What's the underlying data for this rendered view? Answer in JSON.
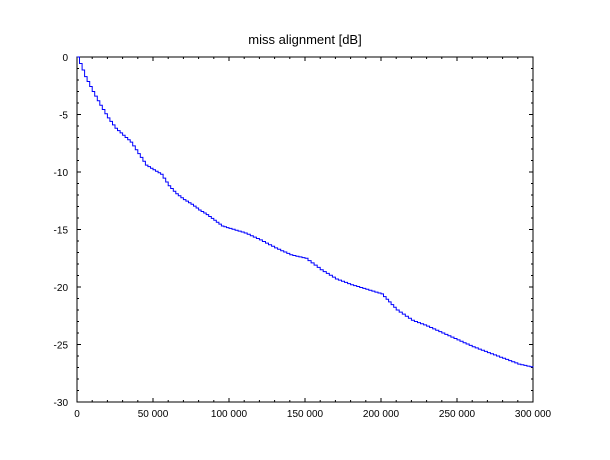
{
  "chart_data": {
    "type": "line",
    "title": "miss alignment [dB]",
    "xlabel": "",
    "ylabel": "",
    "xlim": [
      0,
      300000
    ],
    "ylim": [
      -30,
      0
    ],
    "x_ticks": [
      0,
      50000,
      100000,
      150000,
      200000,
      250000,
      300000
    ],
    "x_tick_labels": [
      "0",
      "50 000",
      "100 000",
      "150 000",
      "200 000",
      "250 000",
      "300 000"
    ],
    "y_ticks": [
      0,
      -5,
      -10,
      -15,
      -20,
      -25,
      -30
    ],
    "y_tick_labels": [
      "0",
      "-5",
      "-10",
      "-15",
      "-20",
      "-25",
      "-30"
    ],
    "grid": false,
    "line_color": "#0000ff",
    "series": [
      {
        "x": [
          0,
          5000,
          10000,
          15000,
          20000,
          25000,
          30000,
          35000,
          40000,
          45000,
          50000,
          55000,
          60000,
          65000,
          70000,
          75000,
          80000,
          85000,
          90000,
          95000,
          100000,
          110000,
          120000,
          130000,
          140000,
          150000,
          160000,
          170000,
          180000,
          190000,
          200000,
          205000,
          210000,
          220000,
          230000,
          240000,
          250000,
          260000,
          270000,
          280000,
          290000,
          300000
        ],
        "y": [
          0,
          -1.7,
          -3.0,
          -4.2,
          -5.3,
          -6.2,
          -6.8,
          -7.4,
          -8.4,
          -9.4,
          -9.8,
          -10.2,
          -11.2,
          -11.9,
          -12.4,
          -12.8,
          -13.3,
          -13.7,
          -14.2,
          -14.7,
          -14.9,
          -15.3,
          -15.9,
          -16.6,
          -17.2,
          -17.5,
          -18.5,
          -19.3,
          -19.8,
          -20.2,
          -20.6,
          -21.3,
          -22.0,
          -22.9,
          -23.4,
          -24.0,
          -24.6,
          -25.2,
          -25.7,
          -26.2,
          -26.7,
          -27.0
        ]
      }
    ]
  }
}
